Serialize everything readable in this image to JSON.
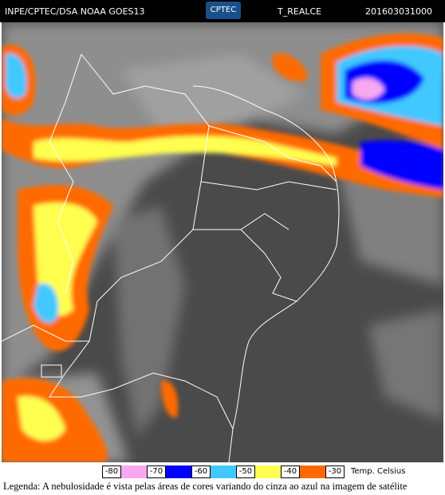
{
  "header": {
    "source": "INPE/CPTEC/DSA NOAA GOES13",
    "logo": "CPTEC",
    "product": "T_REALCE",
    "timestamp": "201603031000"
  },
  "legend": {
    "ticks": [
      -80,
      -70,
      -60,
      -50,
      -40,
      -30
    ],
    "colors": [
      "#f7a8f0",
      "#0000ff",
      "#40c8ff",
      "#ffff50",
      "#ff6a00"
    ],
    "unit": "Temp. Celsius"
  },
  "caption": "Legenda: A nebulosidade é vista pelas áreas de cores variando do cinza ao azul na imagem de satélite"
}
